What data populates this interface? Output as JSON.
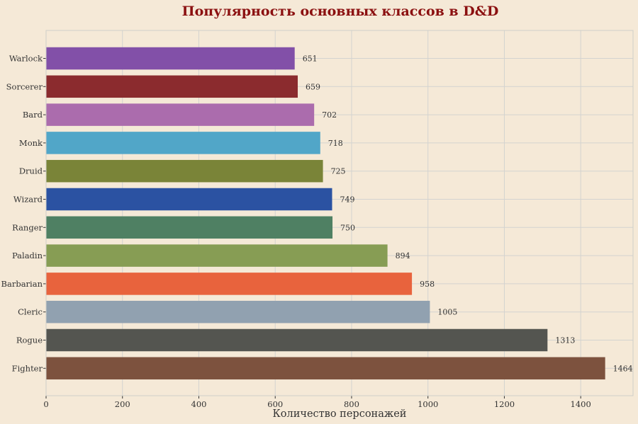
{
  "chart_data": {
    "type": "bar",
    "orientation": "horizontal",
    "title": "Популярность основных классов в D&D",
    "xlabel": "Количество персонажей",
    "ylabel": "",
    "categories": [
      "Warlock",
      "Sorcerer",
      "Bard",
      "Monk",
      "Druid",
      "Wizard",
      "Ranger",
      "Paladin",
      "Barbarian",
      "Cleric",
      "Rogue",
      "Fighter"
    ],
    "values": [
      651,
      659,
      702,
      718,
      725,
      749,
      750,
      894,
      958,
      1005,
      1313,
      1464
    ],
    "bar_colors": [
      "#8250a8",
      "#8b2b2e",
      "#ab6cad",
      "#51a6c8",
      "#7a8438",
      "#2b52a2",
      "#4f8063",
      "#879d54",
      "#e8633d",
      "#91a1b0",
      "#545550",
      "#7d523e"
    ],
    "xlim": [
      0,
      1537
    ],
    "xticks": [
      0,
      200,
      400,
      600,
      800,
      1000,
      1200,
      1400
    ],
    "grid": true,
    "legend": "none",
    "colors": {
      "background": "#f5e9d7",
      "plot_background": "#f5e9d7",
      "title": "#8b1010",
      "grid": "#d3d3d0",
      "axis_frame": "#cfcfc8",
      "text": "#333333"
    }
  }
}
